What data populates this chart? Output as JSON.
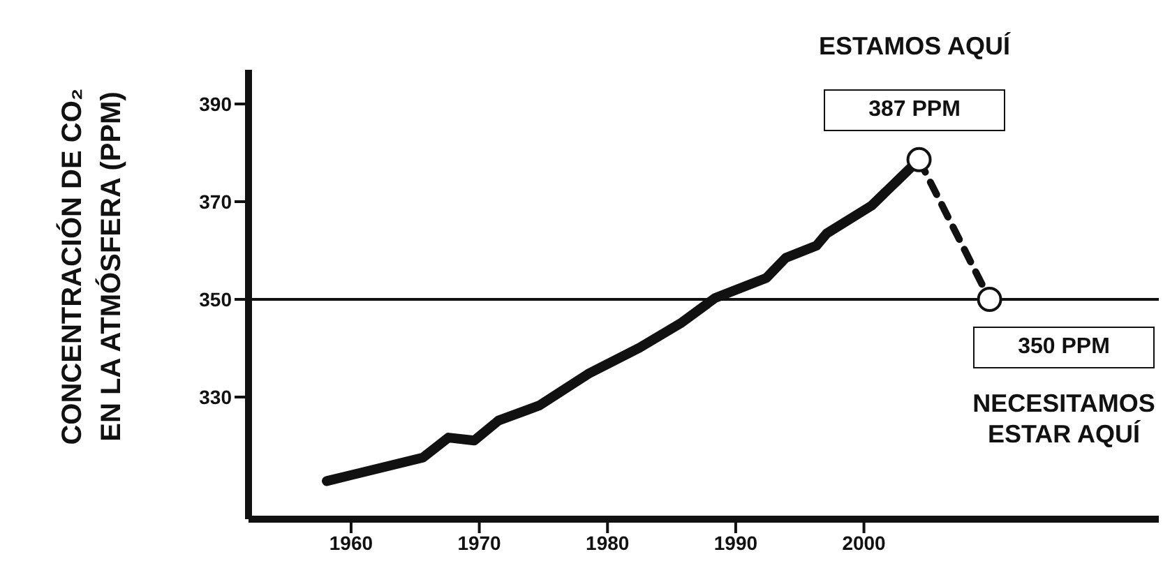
{
  "chart_data": {
    "type": "line",
    "ylabel": "CONCENTRACIÓN DE CO₂ EN LA ATMÓSFERA (PPM)",
    "x": [
      1958.1,
      1965.6,
      1967.6,
      1969.6,
      1971.5,
      1974.7,
      1978.6,
      1982.5,
      1985.7,
      1988.4,
      1992.4,
      1993.9,
      1996.3,
      1997.1,
      2000.6,
      2004.3
    ],
    "series": [
      {
        "color": "#111111",
        "values": [
          312.8,
          317.6,
          321.7,
          321.1,
          325.2,
          328.3,
          334.9,
          340.1,
          345.1,
          350.3,
          354.4,
          358.5,
          361,
          363.5,
          369.2,
          378.6
        ],
        "marker": "none",
        "line_style": "solid"
      },
      {
        "color": "#111111",
        "x": [
          2004.3,
          2009.8
        ],
        "values": [
          378.6,
          350
        ],
        "marker": "circle",
        "line_style": "dashed"
      }
    ],
    "xlim": [
      1952,
      2023
    ],
    "xticks": [
      1960,
      1970,
      1980,
      1990,
      2000
    ],
    "ylim": [
      305,
      397
    ],
    "yticks": [
      330,
      350,
      370,
      390
    ],
    "grid": false,
    "legend": false,
    "ref_lines": [
      {
        "axis": "y",
        "value": 350,
        "color": "#111111"
      }
    ],
    "annotations": [
      "ESTAMOS AQUÍ",
      "387 PPM",
      "350 PPM",
      "NECESITAMOS ESTAR AQUÍ"
    ]
  }
}
